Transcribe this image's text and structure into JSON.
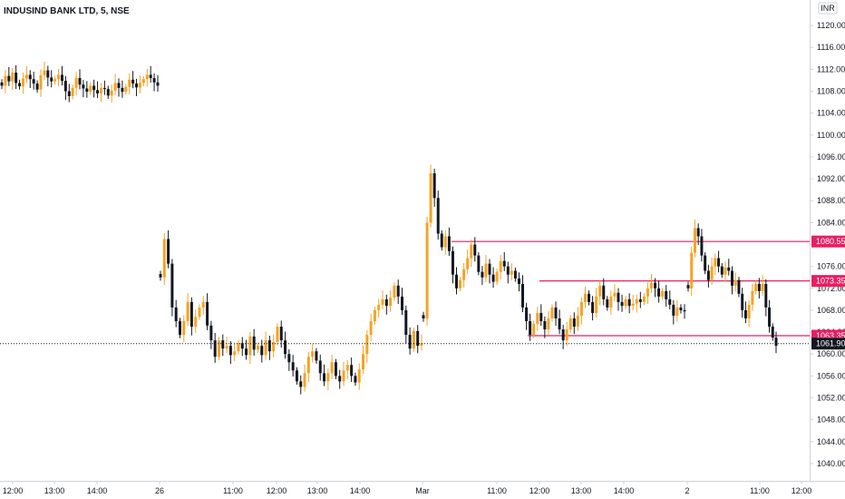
{
  "header": {
    "title": "INDUSIND BANK LTD, 5, NSE",
    "currency": "INR"
  },
  "colors": {
    "up": "#f7a224",
    "down": "#131722",
    "level_line": "#e91e63",
    "last_price_bg": "#131722"
  },
  "price_axis": {
    "ticks": [
      "1120.00",
      "1116.00",
      "1112.00",
      "1108.00",
      "1104.00",
      "1100.00",
      "1096.00",
      "1092.00",
      "1088.00",
      "1084.00",
      "1080.00",
      "1076.00",
      "1072.00",
      "1068.00",
      "1064.00",
      "1060.00",
      "1056.00",
      "1052.00",
      "1048.00",
      "1044.00",
      "1040.00"
    ]
  },
  "time_axis": {
    "ticks": [
      "12:00",
      "13:00",
      "14:00",
      "26",
      "11:00",
      "12:00",
      "13:00",
      "14:00",
      "Mar",
      "11:00",
      "12:00",
      "13:00",
      "14:00",
      "2",
      "11:00",
      "12:00"
    ]
  },
  "chart_data": {
    "type": "candlestick",
    "title": "INDUSIND BANK LTD, 5, NSE",
    "ylim": [
      1037.5,
      1123
    ],
    "last_price": 1061.9,
    "levels": [
      {
        "label": "1080.55",
        "value": 1080.55,
        "start_time": "1 Mar 10:15"
      },
      {
        "label": "1073.35",
        "value": 1073.35,
        "start_time": "1 Mar 12:00"
      },
      {
        "label": "1063.35",
        "value": 1063.35,
        "start_time": "1 Mar 11:45"
      }
    ],
    "segments": [
      {
        "name": "25 Feb",
        "points": [
          1109.0,
          1110.8,
          1109.8,
          1111.4,
          1109.5,
          1108.9,
          1110.3,
          1111.0,
          1110.2,
          1109.4,
          1108.3,
          1110.9,
          1111.8,
          1110.5,
          1109.8,
          1110.2,
          1111.0,
          1109.9,
          1108.0,
          1107.1,
          1108.6,
          1110.4,
          1109.2,
          1108.5,
          1107.9,
          1109.0,
          1108.2,
          1107.6,
          1108.6,
          1108.4,
          1107.2,
          1108.1,
          1109.5,
          1108.6,
          1107.9,
          1108.8,
          1110.1,
          1109.4,
          1108.7,
          1109.5,
          1110.2,
          1111.0,
          1110.4,
          1109.6,
          1109.0
        ]
      },
      {
        "name": "26 Feb",
        "points": [
          1074.0,
          1081.0,
          1076.5,
          1068.5,
          1066.0,
          1063.5,
          1066.0,
          1069.5,
          1065.0,
          1066.8,
          1068.5,
          1069.5,
          1065.2,
          1062.5,
          1059.5,
          1062.5,
          1061.0,
          1061.5,
          1059.8,
          1060.5,
          1062.0,
          1061.0,
          1059.8,
          1063.2,
          1060.8,
          1061.5,
          1059.8,
          1062.5,
          1060.5,
          1062.2,
          1065.0,
          1062.5,
          1060.0,
          1058.5,
          1057.0,
          1055.0,
          1054.0,
          1056.5,
          1059.5,
          1060.5,
          1058.8,
          1056.5,
          1055.0,
          1056.5,
          1058.5,
          1056.0,
          1055.0,
          1057.0,
          1058.0,
          1056.0,
          1054.8,
          1057.2,
          1060.0,
          1063.5,
          1066.0,
          1068.0,
          1069.0,
          1070.0,
          1068.8,
          1070.3,
          1072.5,
          1070.5,
          1068.0,
          1063.5,
          1061.0,
          1064.2,
          1061.5,
          1062.0
        ]
      },
      {
        "name": "1 Mar",
        "points": [
          1066.5,
          1084.0,
          1093.0,
          1088.5,
          1082.0,
          1079.5,
          1081.5,
          1078.8,
          1074.5,
          1072.0,
          1073.5,
          1075.5,
          1077.5,
          1080.0,
          1078.0,
          1075.0,
          1074.0,
          1076.5,
          1074.5,
          1073.2,
          1075.0,
          1077.0,
          1076.0,
          1074.5,
          1075.2,
          1073.8,
          1072.8,
          1068.5,
          1066.0,
          1063.5,
          1065.5,
          1067.5,
          1066.0,
          1064.5,
          1066.5,
          1068.5,
          1066.5,
          1064.5,
          1062.5,
          1064.5,
          1066.5,
          1065.0,
          1067.0,
          1069.5,
          1071.0,
          1069.5,
          1067.5,
          1070.5,
          1072.5,
          1070.0,
          1068.5,
          1070.5,
          1071.2,
          1069.5,
          1068.8,
          1070.0,
          1068.8,
          1069.2,
          1070.0,
          1069.5,
          1070.5,
          1072.0,
          1073.0,
          1072.0,
          1070.5,
          1071.5,
          1070.0,
          1069.0,
          1067.0,
          1068.5,
          1068.0,
          1067.8
        ]
      },
      {
        "name": "2 Mar",
        "points": [
          1072.0,
          1078.5,
          1083.0,
          1081.5,
          1078.0,
          1075.2,
          1073.5,
          1076.0,
          1077.5,
          1076.0,
          1074.5,
          1075.8,
          1075.2,
          1072.5,
          1073.5,
          1071.0,
          1068.0,
          1066.5,
          1069.0,
          1071.5,
          1072.8,
          1071.5,
          1072.8,
          1068.5,
          1065.0,
          1063.0,
          1061.5
        ]
      }
    ]
  }
}
